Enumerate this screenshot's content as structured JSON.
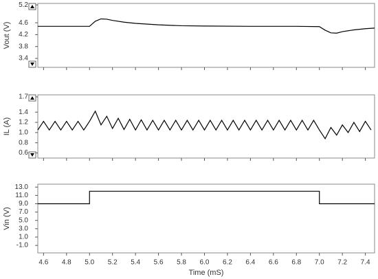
{
  "chart_data": [
    {
      "type": "line",
      "ylabel": "Vout (V)",
      "x": [
        4.55,
        5.0,
        5.05,
        5.1,
        5.15,
        5.2,
        5.3,
        5.4,
        5.6,
        5.8,
        6.0,
        6.4,
        6.8,
        7.0,
        7.05,
        7.1,
        7.15,
        7.2,
        7.3,
        7.4,
        7.48
      ],
      "series": [
        {
          "color": "#000000",
          "values": [
            4.48,
            4.48,
            4.65,
            4.73,
            4.72,
            4.68,
            4.62,
            4.58,
            4.53,
            4.5,
            4.49,
            4.48,
            4.48,
            4.47,
            4.35,
            4.26,
            4.25,
            4.3,
            4.36,
            4.4,
            4.42
          ]
        }
      ],
      "ylim": [
        3.1,
        5.25
      ],
      "yticks": [
        3.4,
        3.8,
        4.2,
        4.6,
        5.2
      ],
      "xlim": [
        4.55,
        7.48
      ]
    },
    {
      "type": "line",
      "ylabel": "IL (A)",
      "x": [
        4.55,
        4.6,
        4.65,
        4.7,
        4.75,
        4.8,
        4.85,
        4.9,
        4.95,
        5.0,
        5.05,
        5.1,
        5.15,
        5.2,
        5.25,
        5.3,
        5.35,
        5.4,
        5.45,
        5.5,
        5.55,
        5.6,
        5.65,
        5.7,
        5.75,
        5.8,
        5.85,
        5.9,
        5.95,
        6.0,
        6.05,
        6.1,
        6.15,
        6.2,
        6.25,
        6.3,
        6.35,
        6.4,
        6.45,
        6.5,
        6.55,
        6.6,
        6.65,
        6.7,
        6.75,
        6.8,
        6.85,
        6.9,
        6.95,
        7.0,
        7.05,
        7.1,
        7.15,
        7.2,
        7.25,
        7.3,
        7.35,
        7.4,
        7.45
      ],
      "series": [
        {
          "color": "#000000",
          "values": [
            1.05,
            1.22,
            1.05,
            1.22,
            1.05,
            1.22,
            1.05,
            1.22,
            1.05,
            1.22,
            1.42,
            1.15,
            1.32,
            1.08,
            1.28,
            1.06,
            1.26,
            1.05,
            1.25,
            1.05,
            1.24,
            1.05,
            1.24,
            1.05,
            1.24,
            1.05,
            1.24,
            1.05,
            1.24,
            1.05,
            1.24,
            1.05,
            1.24,
            1.05,
            1.24,
            1.05,
            1.24,
            1.05,
            1.24,
            1.05,
            1.24,
            1.05,
            1.24,
            1.05,
            1.24,
            1.05,
            1.24,
            1.05,
            1.24,
            1.05,
            0.88,
            1.1,
            0.95,
            1.15,
            1.0,
            1.2,
            1.02,
            1.22,
            1.05
          ]
        }
      ],
      "ylim": [
        0.5,
        1.74
      ],
      "yticks": [
        0.6,
        0.8,
        {
          "value": 1,
          "label": "1.0"
        },
        1.2,
        1.4,
        1.7
      ],
      "xlim": [
        4.55,
        7.48
      ]
    },
    {
      "type": "line",
      "ylabel": "Vin (V)",
      "xlabel": "Time (mS)",
      "x": [
        4.55,
        5.0,
        5.0,
        7.0,
        7.0,
        7.48
      ],
      "series": [
        {
          "color": "#000000",
          "values": [
            9,
            9,
            12,
            12,
            9,
            9
          ]
        }
      ],
      "ylim": [
        -2.8,
        13.7
      ],
      "yticks": [
        {
          "value": -1,
          "label": "-1.0"
        },
        {
          "value": 1,
          "label": "1.0"
        },
        {
          "value": 3,
          "label": "3.0"
        },
        {
          "value": 5,
          "label": "5.0"
        },
        {
          "value": 7,
          "label": "7.0"
        },
        {
          "value": 9,
          "label": "9.0"
        },
        {
          "value": 11,
          "label": "11.0"
        },
        {
          "value": 13,
          "label": "13.0"
        }
      ],
      "xlim": [
        4.55,
        7.48
      ],
      "xticks": [
        4.6,
        4.8,
        {
          "value": 5,
          "label": "5.0"
        },
        5.2,
        5.4,
        5.6,
        5.8,
        {
          "value": 6,
          "label": "6.0"
        },
        6.2,
        6.4,
        6.6,
        6.8,
        {
          "value": 7,
          "label": "7.0"
        },
        7.2,
        7.4
      ]
    }
  ]
}
